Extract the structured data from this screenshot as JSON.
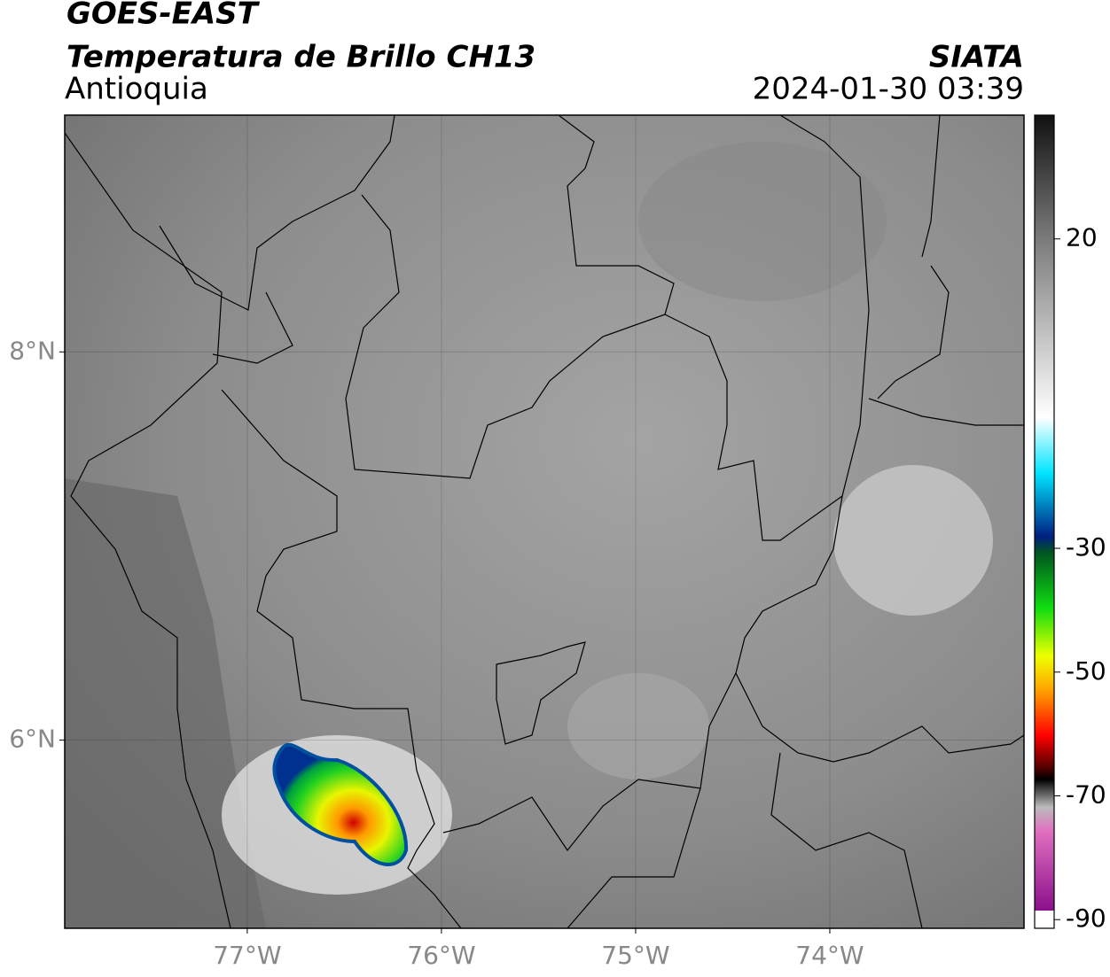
{
  "header": {
    "title": "GOES-EAST",
    "subtitle": "Temperatura de Brillo CH13",
    "region": "Antioquia",
    "source": "SIATA",
    "datetime": "2024-01-30 03:39"
  },
  "map": {
    "xlim": [
      -77.94,
      -73.0
    ],
    "ylim": [
      5.03,
      9.22
    ],
    "xticks": [
      {
        "value": -77,
        "label": "77°W"
      },
      {
        "value": -76,
        "label": "76°W"
      },
      {
        "value": -75,
        "label": "75°W"
      },
      {
        "value": -74,
        "label": "74°W"
      }
    ],
    "yticks": [
      {
        "value": 6,
        "label": "6°N"
      },
      {
        "value": 8,
        "label": "8°N"
      }
    ]
  },
  "colorbar": {
    "lim": [
      -91.4,
      40
    ],
    "ticks": [
      20,
      -30,
      -50,
      -70,
      -90
    ]
  }
}
